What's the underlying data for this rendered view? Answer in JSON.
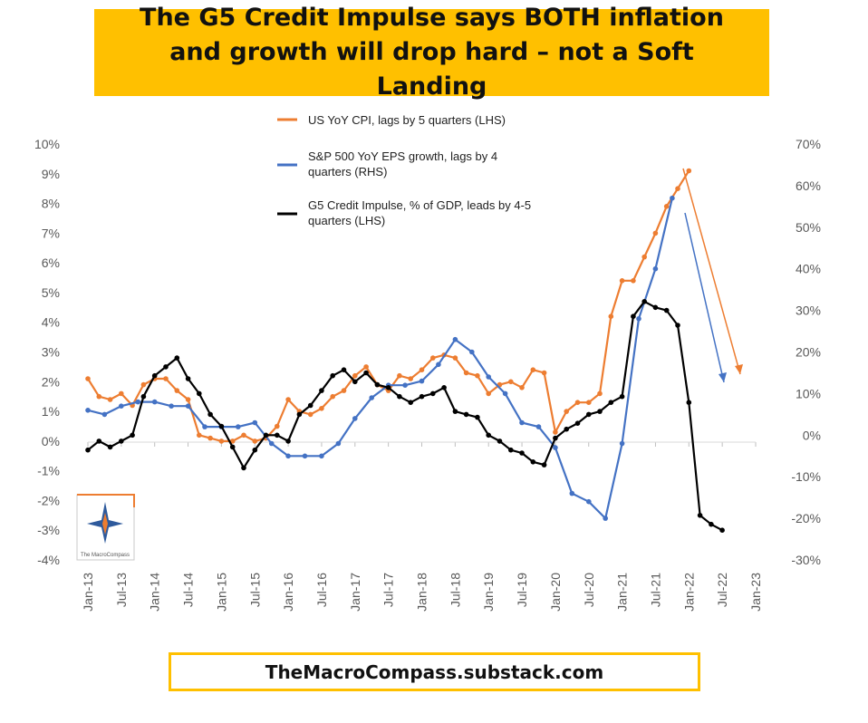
{
  "title": "The G5 Credit Impulse says BOTH inflation and growth will drop hard – not a Soft Landing",
  "footer": "TheMacroCompass.substack.com",
  "logo_text": "The MacroCompass",
  "chart_data": {
    "type": "line",
    "left_axis": {
      "ticks": [
        "10%",
        "9%",
        "8%",
        "7%",
        "6%",
        "5%",
        "4%",
        "3%",
        "2%",
        "1%",
        "0%",
        "-1%",
        "-2%",
        "-3%",
        "-4%"
      ],
      "ylim": [
        -4,
        10
      ]
    },
    "right_axis": {
      "ticks": [
        "70%",
        "60%",
        "50%",
        "40%",
        "30%",
        "20%",
        "10%",
        "0%",
        "-10%",
        "-20%",
        "-30%"
      ],
      "ylim": [
        -30,
        70
      ]
    },
    "x_ticks": [
      "Jan-13",
      "Jul-13",
      "Jan-14",
      "Jul-14",
      "Jan-15",
      "Jul-15",
      "Jan-16",
      "Jul-16",
      "Jan-17",
      "Jul-17",
      "Jan-18",
      "Jul-18",
      "Jan-19",
      "Jul-19",
      "Jan-20",
      "Jul-20",
      "Jan-21",
      "Jul-21",
      "Jan-22",
      "Jul-22",
      "Jan-23"
    ],
    "series": [
      {
        "name": "US YoY CPI, lags by 5 quarters (LHS)",
        "axis": "left",
        "color": "#ed7d31",
        "x": [
          "2013-01",
          "2013-03",
          "2013-05",
          "2013-07",
          "2013-09",
          "2013-11",
          "2014-01",
          "2014-03",
          "2014-05",
          "2014-07",
          "2014-09",
          "2014-11",
          "2015-01",
          "2015-03",
          "2015-05",
          "2015-07",
          "2015-09",
          "2015-11",
          "2016-01",
          "2016-03",
          "2016-05",
          "2016-07",
          "2016-09",
          "2016-11",
          "2017-01",
          "2017-03",
          "2017-05",
          "2017-07",
          "2017-09",
          "2017-11",
          "2018-01",
          "2018-03",
          "2018-05",
          "2018-07",
          "2018-09",
          "2018-11",
          "2019-01",
          "2019-03",
          "2019-05",
          "2019-07",
          "2019-09",
          "2019-11",
          "2020-01",
          "2020-03",
          "2020-05",
          "2020-07",
          "2020-09",
          "2020-11",
          "2021-01",
          "2021-03",
          "2021-05",
          "2021-07",
          "2021-09",
          "2021-11",
          "2022-01"
        ],
        "values": [
          2.1,
          1.5,
          1.4,
          1.6,
          1.2,
          1.9,
          2.1,
          2.1,
          1.7,
          1.4,
          0.2,
          0.1,
          0.0,
          0.0,
          0.2,
          0.0,
          0.1,
          0.5,
          1.4,
          1.0,
          0.9,
          1.1,
          1.5,
          1.7,
          2.2,
          2.5,
          1.9,
          1.7,
          2.2,
          2.1,
          2.4,
          2.8,
          2.9,
          2.8,
          2.3,
          2.2,
          1.6,
          1.9,
          2.0,
          1.8,
          2.4,
          2.3,
          0.3,
          1.0,
          1.3,
          1.3,
          1.6,
          4.2,
          5.4,
          5.4,
          6.2,
          7.0,
          7.9,
          8.5,
          9.1
        ]
      },
      {
        "name": "S&P 500 YoY EPS growth, lags by 4 quarters (RHS)",
        "axis": "right",
        "color": "#4472c4",
        "x": [
          "2013-01",
          "2013-04",
          "2013-07",
          "2013-10",
          "2014-01",
          "2014-04",
          "2014-07",
          "2014-10",
          "2015-01",
          "2015-04",
          "2015-07",
          "2015-10",
          "2016-01",
          "2016-04",
          "2016-07",
          "2016-10",
          "2017-01",
          "2017-04",
          "2017-07",
          "2017-10",
          "2018-01",
          "2018-04",
          "2018-07",
          "2018-10",
          "2019-01",
          "2019-04",
          "2019-07",
          "2019-10",
          "2020-01",
          "2020-04",
          "2020-07",
          "2020-10",
          "2021-01",
          "2021-04",
          "2021-07",
          "2021-10"
        ],
        "values": [
          6,
          5,
          7,
          8,
          8,
          7,
          7,
          2,
          2,
          2,
          3,
          -2,
          -5,
          -5,
          -5,
          -2,
          4,
          9,
          12,
          12,
          13,
          17,
          23,
          20,
          14,
          10,
          3,
          2,
          -3,
          -14,
          -16,
          -20,
          -2,
          28,
          40,
          57
        ]
      },
      {
        "name": "G5 Credit Impulse, % of GDP, leads by 4-5 quarters (LHS)",
        "axis": "left",
        "color": "#000000",
        "x": [
          "2013-01",
          "2013-03",
          "2013-05",
          "2013-07",
          "2013-09",
          "2013-11",
          "2014-01",
          "2014-03",
          "2014-05",
          "2014-07",
          "2014-09",
          "2014-11",
          "2015-01",
          "2015-03",
          "2015-05",
          "2015-07",
          "2015-09",
          "2015-11",
          "2016-01",
          "2016-03",
          "2016-05",
          "2016-07",
          "2016-09",
          "2016-11",
          "2017-01",
          "2017-03",
          "2017-05",
          "2017-07",
          "2017-09",
          "2017-11",
          "2018-01",
          "2018-03",
          "2018-05",
          "2018-07",
          "2018-09",
          "2018-11",
          "2019-01",
          "2019-03",
          "2019-05",
          "2019-07",
          "2019-09",
          "2019-11",
          "2020-01",
          "2020-03",
          "2020-05",
          "2020-07",
          "2020-09",
          "2020-11",
          "2021-01",
          "2021-03",
          "2021-05",
          "2021-07",
          "2021-09",
          "2021-11",
          "2022-01",
          "2022-03",
          "2022-05",
          "2022-07"
        ],
        "values": [
          -0.3,
          0.0,
          -0.2,
          0.0,
          0.2,
          1.5,
          2.2,
          2.5,
          2.8,
          2.1,
          1.6,
          0.9,
          0.5,
          -0.2,
          -0.9,
          -0.3,
          0.2,
          0.2,
          0.0,
          0.9,
          1.2,
          1.7,
          2.2,
          2.4,
          2.0,
          2.3,
          1.9,
          1.8,
          1.5,
          1.3,
          1.5,
          1.6,
          1.8,
          1.0,
          0.9,
          0.8,
          0.2,
          0.0,
          -0.3,
          -0.4,
          -0.7,
          -0.8,
          0.1,
          0.4,
          0.6,
          0.9,
          1.0,
          1.3,
          1.5,
          4.2,
          4.7,
          4.5,
          4.4,
          3.9,
          1.3,
          -2.5,
          -2.8,
          -3.0
        ]
      }
    ],
    "grid": false,
    "legend": "top-center"
  }
}
